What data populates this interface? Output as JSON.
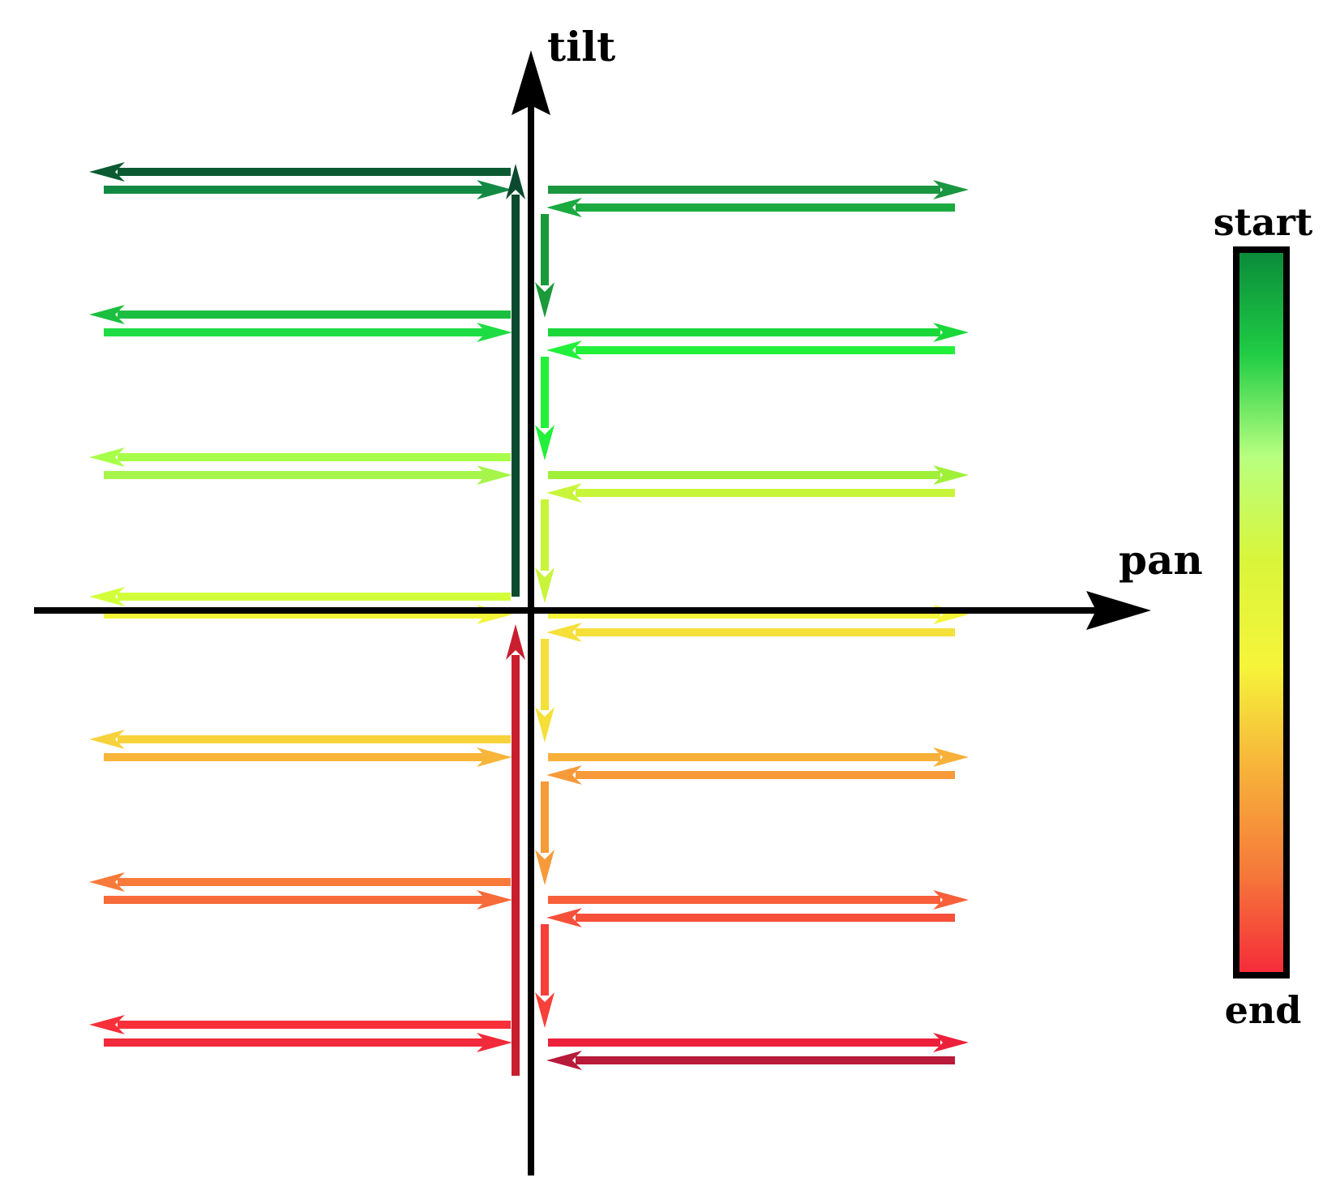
{
  "axes": {
    "x_label": "pan",
    "y_label": "tilt"
  },
  "colorbar": {
    "start_label": "start",
    "end_label": "end",
    "gradient_colors": [
      "#0a8a3a",
      "#1fcc44",
      "#b8ff80",
      "#d9f53a",
      "#f5f53a",
      "#f7b33a",
      "#f57a3a",
      "#f52a3a"
    ]
  },
  "scan_rows": [
    {
      "name": "row-1",
      "colors": {
        "left_out": "#0b5a32",
        "left_back": "#138a44",
        "right_out": "#1b9640",
        "right_back": "#1aaa40",
        "drop": "#1b9a3a"
      }
    },
    {
      "name": "row-2",
      "colors": {
        "left_out": "#1bbf3f",
        "left_back": "#1edd44",
        "right_out": "#1ad83a",
        "right_back": "#22f03a",
        "drop": "#22f03a"
      }
    },
    {
      "name": "row-3",
      "colors": {
        "left_out": "#a8ff4a",
        "left_back": "#a6f54a",
        "right_out": "#a0f03a",
        "right_back": "#c8f53a",
        "drop": "#c8f53a"
      }
    },
    {
      "name": "row-4",
      "colors": {
        "left_out": "#d2ff3a",
        "left_back": "#f2f53a",
        "right_out": "#f5f53a",
        "right_back": "#f5e03a",
        "drop": "#f5e03a"
      }
    },
    {
      "name": "row-5",
      "colors": {
        "left_out": "#f7d23a",
        "left_back": "#f7b53a",
        "right_out": "#f7b03a",
        "right_back": "#f79a3a",
        "drop": "#f79a3a"
      }
    },
    {
      "name": "row-6",
      "colors": {
        "left_out": "#f77a3a",
        "left_back": "#f76a3a",
        "right_out": "#f7603a",
        "right_back": "#f7503a",
        "drop": "#f7403a"
      }
    },
    {
      "name": "row-7",
      "colors": {
        "left_out": "#f7303a",
        "left_back": "#f02a3a",
        "right_out": "#ec203a",
        "right_back": "#b81a3a",
        "drop": null
      }
    }
  ],
  "return_lines": {
    "upper_color": "#0b4a2e",
    "lower_color": "#c81e2e"
  }
}
